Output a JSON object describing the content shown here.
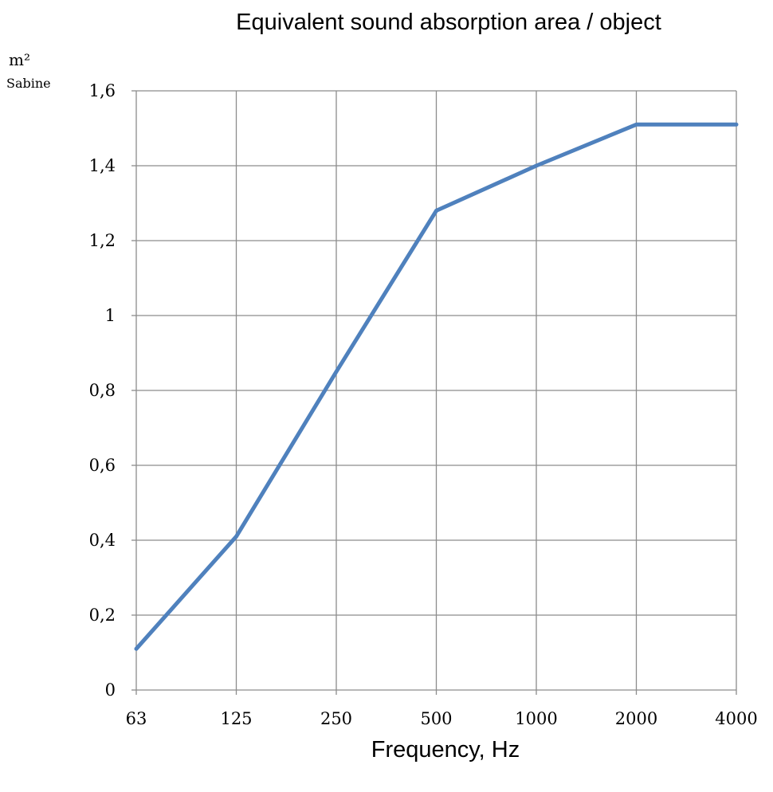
{
  "chart_data": {
    "type": "line",
    "title": "Equivalent sound absorption area / object",
    "xlabel": "Frequency, Hz",
    "ylabel": "m²",
    "ylabel_sub": "Sabine",
    "categories": [
      "63",
      "125",
      "250",
      "500",
      "1000",
      "2000",
      "4000"
    ],
    "yticks": [
      "0",
      "0,2",
      "0,4",
      "0,6",
      "0,8",
      "1",
      "1,2",
      "1,4",
      "1,6"
    ],
    "ylim": [
      0,
      1.6
    ],
    "grid": true,
    "legend": "none",
    "series": [
      {
        "values": [
          0.11,
          0.41,
          0.85,
          1.28,
          1.4,
          1.51,
          1.51
        ],
        "color": "#4f81bd"
      }
    ]
  }
}
